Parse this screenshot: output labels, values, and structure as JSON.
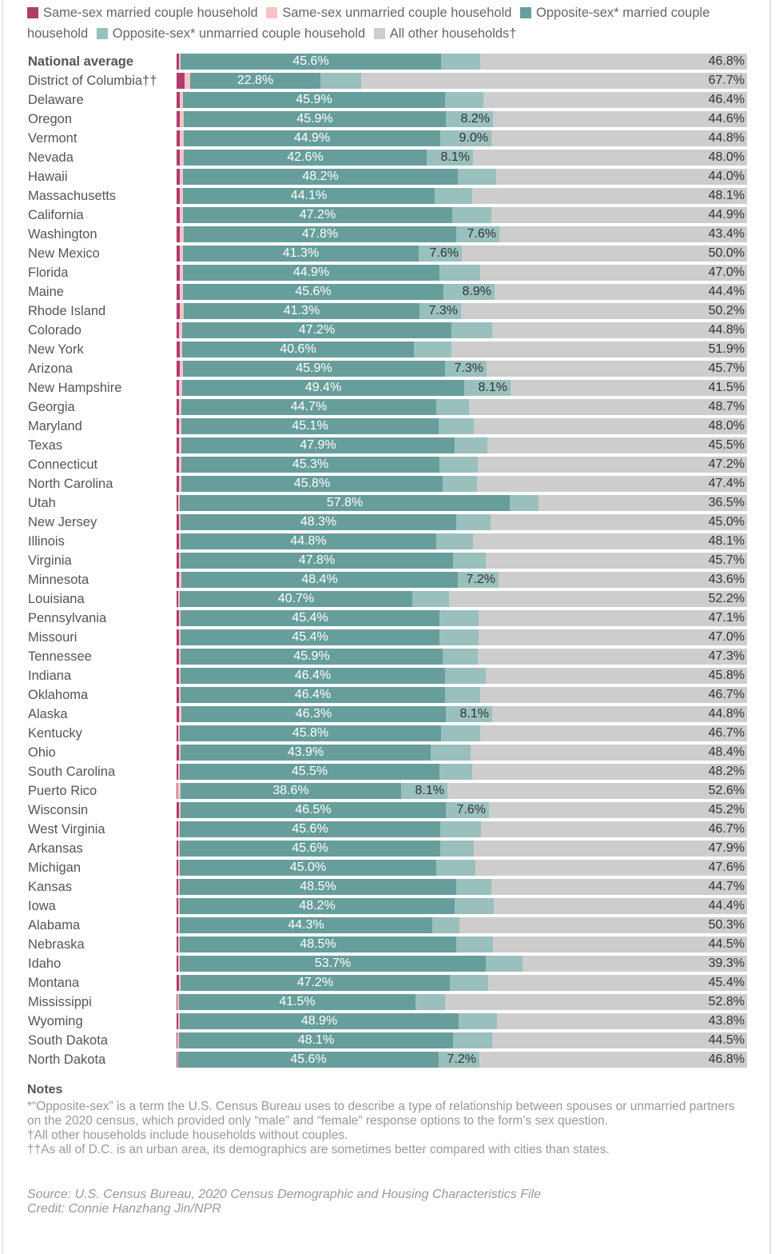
{
  "colors": {
    "same_sex_married": "#b03c6a",
    "same_sex_unmarried": "#f5c3c8",
    "opposite_sex_married": "#679e9b",
    "opposite_sex_unmarried": "#99c0bd",
    "other": "#cdcdcd"
  },
  "legend": [
    {
      "key": "same_sex_married",
      "label": "Same-sex married couple household"
    },
    {
      "key": "same_sex_unmarried",
      "label": "Same-sex unmarried couple household"
    },
    {
      "key": "opposite_sex_married",
      "label": "Opposite-sex* married couple household"
    },
    {
      "key": "opposite_sex_unmarried",
      "label": "Opposite-sex* unmarried couple household"
    },
    {
      "key": "other",
      "label": "All other households†"
    }
  ],
  "chart_data": {
    "type": "bar",
    "orientation": "horizontal",
    "stacked": true,
    "title": "",
    "xlabel": "",
    "ylabel": "",
    "xlim": [
      0,
      100
    ],
    "grid": false,
    "legend_position": "top",
    "series_order": [
      "same_sex_married",
      "same_sex_unmarried",
      "opposite_sex_married",
      "opposite_sex_unmarried",
      "other"
    ],
    "rows": [
      {
        "name": "National average",
        "bold": true,
        "ssm": 0.4,
        "ssu": 0.3,
        "osm": 45.6,
        "osu": 6.9,
        "other": 46.8,
        "osm_label": "45.6%",
        "osu_label": "",
        "other_label": "46.8%"
      },
      {
        "name": "District of Columbia††",
        "ssm": 1.4,
        "ssu": 1.0,
        "osm": 22.8,
        "osu": 7.1,
        "other": 67.7,
        "osm_label": "22.8%",
        "osu_label": "",
        "other_label": "67.7%"
      },
      {
        "name": "Delaware",
        "ssm": 0.5,
        "ssu": 0.5,
        "osm": 45.9,
        "osu": 6.7,
        "other": 46.4,
        "osm_label": "45.9%",
        "osu_label": "",
        "other_label": "46.4%"
      },
      {
        "name": "Oregon",
        "ssm": 0.6,
        "ssu": 0.7,
        "osm": 45.9,
        "osu": 8.2,
        "other": 44.6,
        "osm_label": "45.9%",
        "osu_label": "8.2%",
        "other_label": "44.6%"
      },
      {
        "name": "Vermont",
        "ssm": 0.6,
        "ssu": 0.7,
        "osm": 44.9,
        "osu": 9.0,
        "other": 44.8,
        "osm_label": "44.9%",
        "osu_label": "9.0%",
        "other_label": "44.8%"
      },
      {
        "name": "Nevada",
        "ssm": 0.6,
        "ssu": 0.7,
        "osm": 42.6,
        "osu": 8.1,
        "other": 48.0,
        "osm_label": "42.6%",
        "osu_label": "8.1%",
        "other_label": "48.0%"
      },
      {
        "name": "Hawaii",
        "ssm": 0.5,
        "ssu": 0.6,
        "osm": 48.2,
        "osu": 6.7,
        "other": 44.0,
        "osm_label": "48.2%",
        "osu_label": "",
        "other_label": "44.0%"
      },
      {
        "name": "Massachusetts",
        "ssm": 0.6,
        "ssu": 0.6,
        "osm": 44.1,
        "osu": 6.6,
        "other": 48.1,
        "osm_label": "44.1%",
        "osu_label": "",
        "other_label": "48.1%"
      },
      {
        "name": "California",
        "ssm": 0.5,
        "ssu": 0.6,
        "osm": 47.2,
        "osu": 6.8,
        "other": 44.9,
        "osm_label": "47.2%",
        "osu_label": "",
        "other_label": "44.9%"
      },
      {
        "name": "Washington",
        "ssm": 0.5,
        "ssu": 0.7,
        "osm": 47.8,
        "osu": 7.6,
        "other": 43.4,
        "osm_label": "47.8%",
        "osu_label": "7.6%",
        "other_label": "43.4%"
      },
      {
        "name": "New Mexico",
        "ssm": 0.5,
        "ssu": 0.6,
        "osm": 41.3,
        "osu": 7.6,
        "other": 50.0,
        "osm_label": "41.3%",
        "osu_label": "7.6%",
        "other_label": "50.0%"
      },
      {
        "name": "Florida",
        "ssm": 0.5,
        "ssu": 0.5,
        "osm": 44.9,
        "osu": 7.1,
        "other": 47.0,
        "osm_label": "44.9%",
        "osu_label": "",
        "other_label": "47.0%"
      },
      {
        "name": "Maine",
        "ssm": 0.5,
        "ssu": 0.6,
        "osm": 45.6,
        "osu": 8.9,
        "other": 44.4,
        "osm_label": "45.6%",
        "osu_label": "8.9%",
        "other_label": "44.4%"
      },
      {
        "name": "Rhode Island",
        "ssm": 0.5,
        "ssu": 0.7,
        "osm": 41.3,
        "osu": 7.3,
        "other": 50.2,
        "osm_label": "41.3%",
        "osu_label": "7.3%",
        "other_label": "50.2%"
      },
      {
        "name": "Colorado",
        "ssm": 0.4,
        "ssu": 0.5,
        "osm": 47.2,
        "osu": 7.1,
        "other": 44.8,
        "osm_label": "47.2%",
        "osu_label": "",
        "other_label": "44.8%"
      },
      {
        "name": "New York",
        "ssm": 0.5,
        "ssu": 0.4,
        "osm": 40.6,
        "osu": 6.6,
        "other": 51.9,
        "osm_label": "40.6%",
        "osu_label": "",
        "other_label": "51.9%"
      },
      {
        "name": "Arizona",
        "ssm": 0.5,
        "ssu": 0.6,
        "osm": 45.9,
        "osu": 7.3,
        "other": 45.7,
        "osm_label": "45.9%",
        "osu_label": "7.3%",
        "other_label": "45.7%"
      },
      {
        "name": "New Hampshire",
        "ssm": 0.4,
        "ssu": 0.6,
        "osm": 49.4,
        "osu": 8.1,
        "other": 41.5,
        "osm_label": "49.4%",
        "osu_label": "8.1%",
        "other_label": "41.5%"
      },
      {
        "name": "Georgia",
        "ssm": 0.4,
        "ssu": 0.4,
        "osm": 44.7,
        "osu": 5.8,
        "other": 48.7,
        "osm_label": "44.7%",
        "osu_label": "",
        "other_label": "48.7%"
      },
      {
        "name": "Maryland",
        "ssm": 0.4,
        "ssu": 0.4,
        "osm": 45.1,
        "osu": 6.1,
        "other": 48.0,
        "osm_label": "45.1%",
        "osu_label": "",
        "other_label": "48.0%"
      },
      {
        "name": "Texas",
        "ssm": 0.4,
        "ssu": 0.4,
        "osm": 47.9,
        "osu": 5.8,
        "other": 45.5,
        "osm_label": "47.9%",
        "osu_label": "",
        "other_label": "45.5%"
      },
      {
        "name": "Connecticut",
        "ssm": 0.4,
        "ssu": 0.4,
        "osm": 45.3,
        "osu": 6.7,
        "other": 47.2,
        "osm_label": "45.3%",
        "osu_label": "",
        "other_label": "47.2%"
      },
      {
        "name": "North Carolina",
        "ssm": 0.4,
        "ssu": 0.4,
        "osm": 45.8,
        "osu": 6.0,
        "other": 47.4,
        "osm_label": "45.8%",
        "osu_label": "",
        "other_label": "47.4%"
      },
      {
        "name": "Utah",
        "ssm": 0.3,
        "ssu": 0.3,
        "osm": 57.8,
        "osu": 5.1,
        "other": 36.5,
        "osm_label": "57.8%",
        "osu_label": "",
        "other_label": "36.5%"
      },
      {
        "name": "New Jersey",
        "ssm": 0.4,
        "ssu": 0.3,
        "osm": 48.3,
        "osu": 6.0,
        "other": 45.0,
        "osm_label": "48.3%",
        "osu_label": "",
        "other_label": "45.0%"
      },
      {
        "name": "Illinois",
        "ssm": 0.4,
        "ssu": 0.3,
        "osm": 44.8,
        "osu": 6.4,
        "other": 48.1,
        "osm_label": "44.8%",
        "osu_label": "",
        "other_label": "48.1%"
      },
      {
        "name": "Virginia",
        "ssm": 0.4,
        "ssu": 0.3,
        "osm": 47.8,
        "osu": 5.8,
        "other": 45.7,
        "osm_label": "47.8%",
        "osu_label": "",
        "other_label": "45.7%"
      },
      {
        "name": "Minnesota",
        "ssm": 0.4,
        "ssu": 0.4,
        "osm": 48.4,
        "osu": 7.2,
        "other": 43.6,
        "osm_label": "48.4%",
        "osu_label": "7.2%",
        "other_label": "43.6%"
      },
      {
        "name": "Louisiana",
        "ssm": 0.3,
        "ssu": 0.3,
        "osm": 40.7,
        "osu": 6.5,
        "other": 52.2,
        "osm_label": "40.7%",
        "osu_label": "",
        "other_label": "52.2%"
      },
      {
        "name": "Pennsylvania",
        "ssm": 0.4,
        "ssu": 0.3,
        "osm": 45.4,
        "osu": 6.8,
        "other": 47.1,
        "osm_label": "45.4%",
        "osu_label": "",
        "other_label": "47.1%"
      },
      {
        "name": "Missouri",
        "ssm": 0.4,
        "ssu": 0.3,
        "osm": 45.4,
        "osu": 6.9,
        "other": 47.0,
        "osm_label": "45.4%",
        "osu_label": "",
        "other_label": "47.0%"
      },
      {
        "name": "Tennessee",
        "ssm": 0.4,
        "ssu": 0.3,
        "osm": 45.9,
        "osu": 6.1,
        "other": 47.3,
        "osm_label": "45.9%",
        "osu_label": "",
        "other_label": "47.3%"
      },
      {
        "name": "Indiana",
        "ssm": 0.4,
        "ssu": 0.3,
        "osm": 46.4,
        "osu": 7.1,
        "other": 45.8,
        "osm_label": "46.4%",
        "osu_label": "",
        "other_label": "45.8%"
      },
      {
        "name": "Oklahoma",
        "ssm": 0.4,
        "ssu": 0.3,
        "osm": 46.4,
        "osu": 6.2,
        "other": 46.7,
        "osm_label": "46.4%",
        "osu_label": "",
        "other_label": "46.7%"
      },
      {
        "name": "Alaska",
        "ssm": 0.4,
        "ssu": 0.4,
        "osm": 46.3,
        "osu": 8.1,
        "other": 44.8,
        "osm_label": "46.3%",
        "osu_label": "8.1%",
        "other_label": "44.8%"
      },
      {
        "name": "Kentucky",
        "ssm": 0.3,
        "ssu": 0.3,
        "osm": 45.8,
        "osu": 6.9,
        "other": 46.7,
        "osm_label": "45.8%",
        "osu_label": "",
        "other_label": "46.7%"
      },
      {
        "name": "Ohio",
        "ssm": 0.4,
        "ssu": 0.3,
        "osm": 43.9,
        "osu": 7.0,
        "other": 48.4,
        "osm_label": "43.9%",
        "osu_label": "",
        "other_label": "48.4%"
      },
      {
        "name": "South Carolina",
        "ssm": 0.3,
        "ssu": 0.3,
        "osm": 45.5,
        "osu": 5.7,
        "other": 48.2,
        "osm_label": "45.5%",
        "osu_label": "",
        "other_label": "48.2%"
      },
      {
        "name": "Puerto Rico",
        "ssm": 0.2,
        "ssu": 0.5,
        "osm": 38.6,
        "osu": 8.1,
        "other": 52.6,
        "osm_label": "38.6%",
        "osu_label": "8.1%",
        "other_label": "52.6%"
      },
      {
        "name": "Wisconsin",
        "ssm": 0.4,
        "ssu": 0.3,
        "osm": 46.5,
        "osu": 7.6,
        "other": 45.2,
        "osm_label": "46.5%",
        "osu_label": "7.6%",
        "other_label": "45.2%"
      },
      {
        "name": "West Virginia",
        "ssm": 0.3,
        "ssu": 0.3,
        "osm": 45.6,
        "osu": 7.1,
        "other": 46.7,
        "osm_label": "45.6%",
        "osu_label": "",
        "other_label": "46.7%"
      },
      {
        "name": "Arkansas",
        "ssm": 0.3,
        "ssu": 0.3,
        "osm": 45.6,
        "osu": 5.9,
        "other": 47.9,
        "osm_label": "45.6%",
        "osu_label": "",
        "other_label": "47.9%"
      },
      {
        "name": "Michigan",
        "ssm": 0.3,
        "ssu": 0.3,
        "osm": 45.0,
        "osu": 6.8,
        "other": 47.6,
        "osm_label": "45.0%",
        "osu_label": "",
        "other_label": "47.6%"
      },
      {
        "name": "Kansas",
        "ssm": 0.3,
        "ssu": 0.3,
        "osm": 48.5,
        "osu": 6.2,
        "other": 44.7,
        "osm_label": "48.5%",
        "osu_label": "",
        "other_label": "44.7%"
      },
      {
        "name": "Iowa",
        "ssm": 0.3,
        "ssu": 0.3,
        "osm": 48.2,
        "osu": 6.8,
        "other": 44.4,
        "osm_label": "48.2%",
        "osu_label": "",
        "other_label": "44.4%"
      },
      {
        "name": "Alabama",
        "ssm": 0.3,
        "ssu": 0.3,
        "osm": 44.3,
        "osu": 4.8,
        "other": 50.3,
        "osm_label": "44.3%",
        "osu_label": "",
        "other_label": "50.3%"
      },
      {
        "name": "Nebraska",
        "ssm": 0.3,
        "ssu": 0.3,
        "osm": 48.5,
        "osu": 6.4,
        "other": 44.5,
        "osm_label": "48.5%",
        "osu_label": "",
        "other_label": "44.5%"
      },
      {
        "name": "Idaho",
        "ssm": 0.3,
        "ssu": 0.3,
        "osm": 53.7,
        "osu": 6.4,
        "other": 39.3,
        "osm_label": "53.7%",
        "osu_label": "",
        "other_label": "39.3%"
      },
      {
        "name": "Montana",
        "ssm": 0.4,
        "ssu": 0.3,
        "osm": 47.2,
        "osu": 6.7,
        "other": 45.4,
        "osm_label": "47.2%",
        "osu_label": "",
        "other_label": "45.4%"
      },
      {
        "name": "Mississippi",
        "ssm": 0.2,
        "ssu": 0.3,
        "osm": 41.5,
        "osu": 5.2,
        "other": 52.8,
        "osm_label": "41.5%",
        "osu_label": "",
        "other_label": "52.8%"
      },
      {
        "name": "Wyoming",
        "ssm": 0.3,
        "ssu": 0.3,
        "osm": 48.9,
        "osu": 6.7,
        "other": 43.8,
        "osm_label": "48.9%",
        "osu_label": "",
        "other_label": "43.8%"
      },
      {
        "name": "South Dakota",
        "ssm": 0.2,
        "ssu": 0.3,
        "osm": 48.1,
        "osu": 6.9,
        "other": 44.5,
        "osm_label": "48.1%",
        "osu_label": "",
        "other_label": "44.5%"
      },
      {
        "name": "North Dakota",
        "ssm": 0.2,
        "ssu": 0.2,
        "osm": 45.6,
        "osu": 7.2,
        "other": 46.8,
        "osm_label": "45.6%",
        "osu_label": "7.2%",
        "other_label": "46.8%"
      }
    ]
  },
  "notes": {
    "title": "Notes",
    "lines": [
      "*“Opposite-sex” is a term the U.S. Census Bureau uses to describe a type of relationship between spouses or unmarried partners on the 2020 census, which provided only “male” and “female” response options to the form’s sex question.",
      "†All other households include households without couples.",
      "††As all of D.C. is an urban area, its demographics are sometimes better compared with cities than states."
    ]
  },
  "source": {
    "source_line": "Source: U.S. Census Bureau, 2020 Census Demographic and Housing Characteristics File",
    "credit_line": "Credit: Connie Hanzhang Jin/NPR"
  }
}
